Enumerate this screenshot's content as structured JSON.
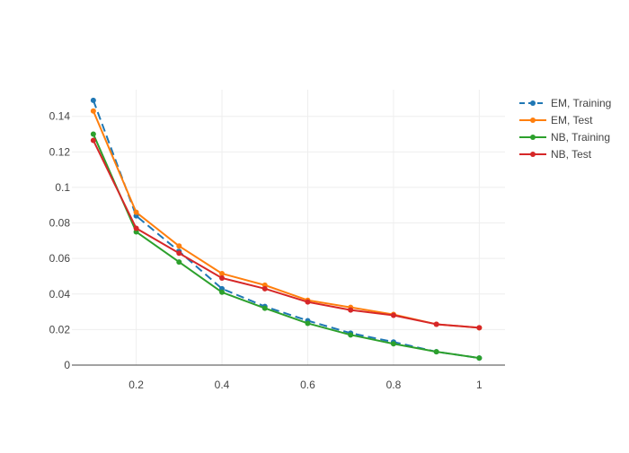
{
  "chart_data": {
    "type": "line",
    "title": "",
    "xlabel": "",
    "ylabel": "",
    "xlim": [
      0.05,
      1.06
    ],
    "ylim": [
      0,
      0.155
    ],
    "grid": true,
    "legend_position": "top-right",
    "x_ticks": [
      {
        "value": 0.2,
        "label": "0.2"
      },
      {
        "value": 0.4,
        "label": "0.4"
      },
      {
        "value": 0.6,
        "label": "0.6"
      },
      {
        "value": 0.8,
        "label": "0.8"
      },
      {
        "value": 1.0,
        "label": "1"
      }
    ],
    "y_ticks": [
      {
        "value": 0,
        "label": "0"
      },
      {
        "value": 0.02,
        "label": "0.02"
      },
      {
        "value": 0.04,
        "label": "0.04"
      },
      {
        "value": 0.06,
        "label": "0.06"
      },
      {
        "value": 0.08,
        "label": "0.08"
      },
      {
        "value": 0.1,
        "label": "0.1"
      },
      {
        "value": 0.12,
        "label": "0.12"
      },
      {
        "value": 0.14,
        "label": "0.14"
      }
    ],
    "x": [
      0.1,
      0.2,
      0.3,
      0.4,
      0.5,
      0.6,
      0.7,
      0.8,
      0.9,
      1.0
    ],
    "series": [
      {
        "name": "EM, Training",
        "color": "#1f77b4",
        "dash": "dash",
        "values": [
          0.149,
          0.084,
          0.064,
          0.043,
          0.033,
          0.025,
          0.018,
          0.013,
          0.0075,
          0.004
        ]
      },
      {
        "name": "EM, Test",
        "color": "#ff7f0e",
        "dash": "solid",
        "values": [
          0.143,
          0.086,
          0.067,
          0.0515,
          0.045,
          0.0365,
          0.0325,
          0.0285,
          0.023,
          0.021
        ]
      },
      {
        "name": "NB, Training",
        "color": "#2ca02c",
        "dash": "solid",
        "values": [
          0.13,
          0.075,
          0.058,
          0.041,
          0.032,
          0.0235,
          0.017,
          0.012,
          0.0075,
          0.004
        ]
      },
      {
        "name": "NB, Test",
        "color": "#d62728",
        "dash": "solid",
        "values": [
          0.1265,
          0.077,
          0.063,
          0.049,
          0.043,
          0.0355,
          0.031,
          0.028,
          0.023,
          0.021
        ]
      }
    ]
  }
}
